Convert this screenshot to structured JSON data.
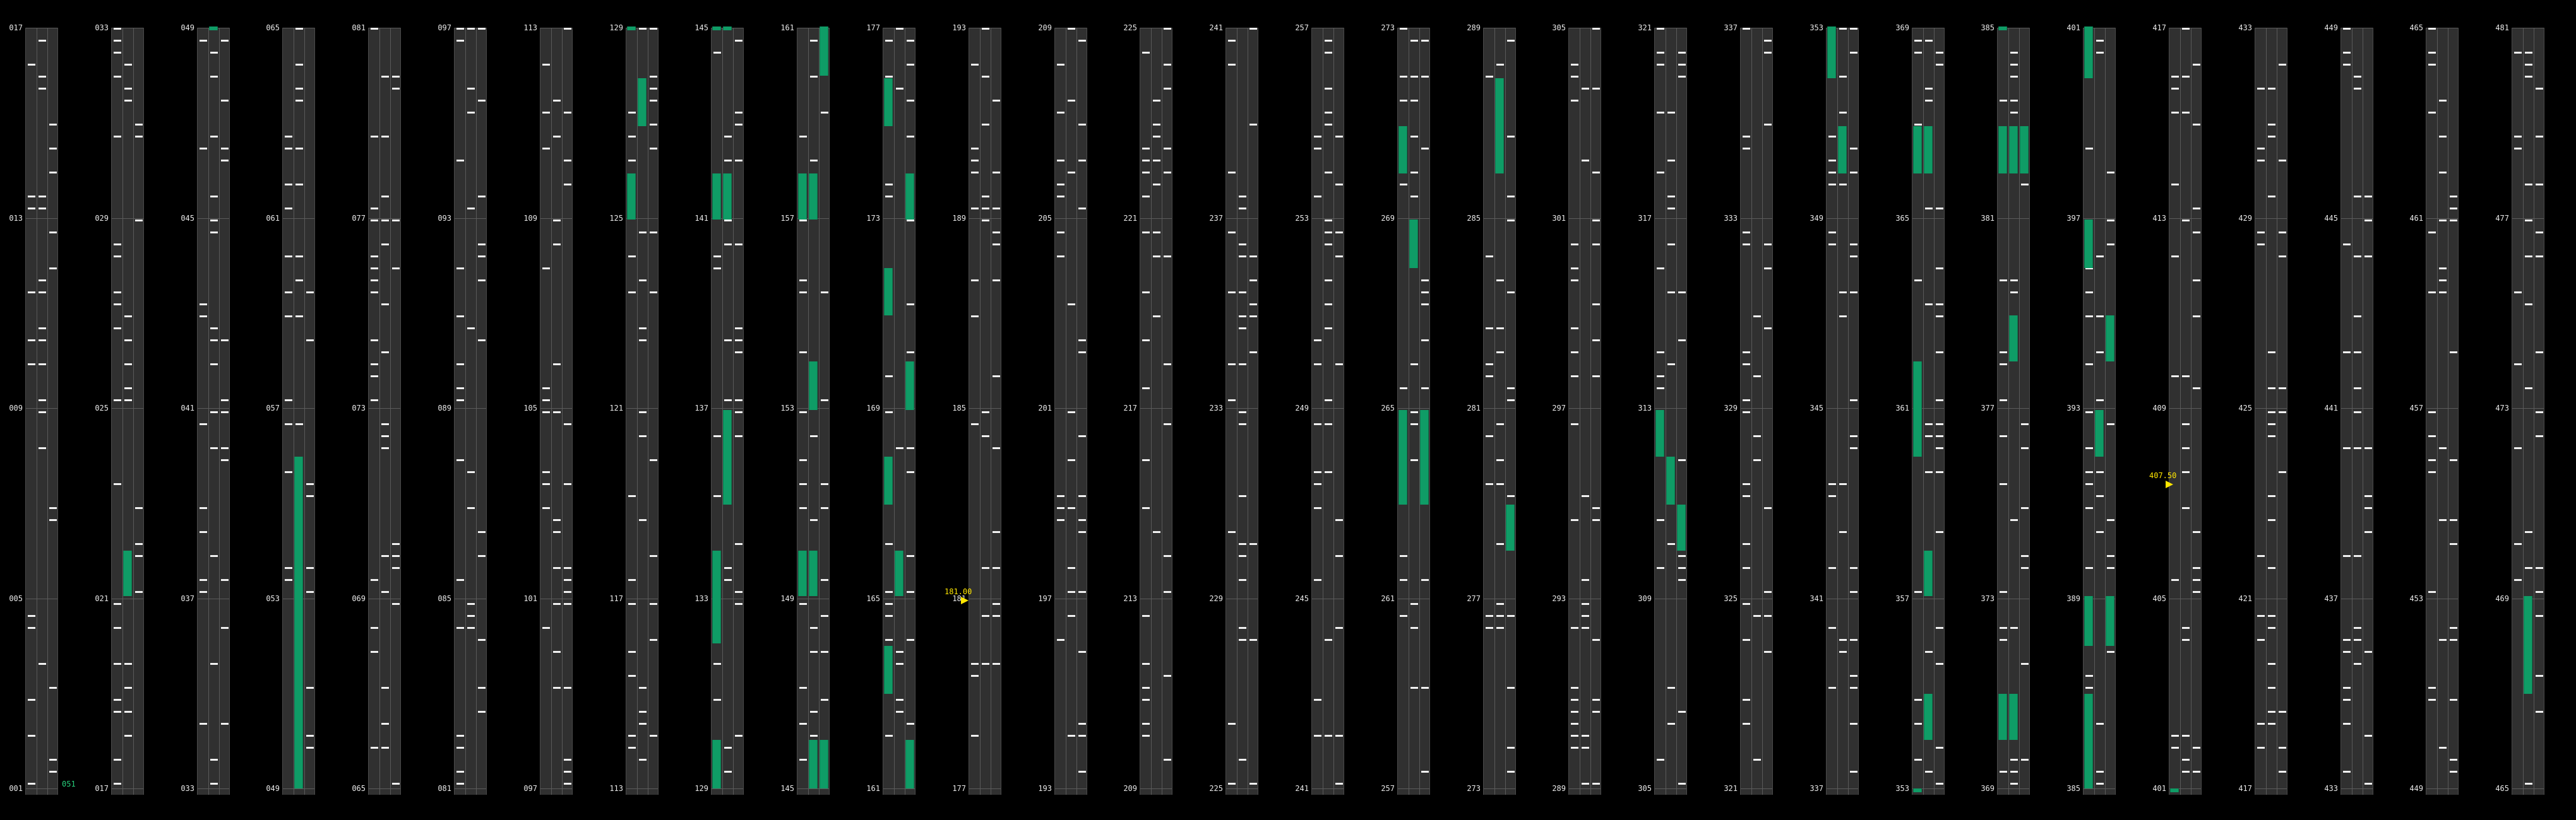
{
  "columns": [
    {
      "labels": [
        "017",
        "013",
        "009",
        "005",
        "001"
      ]
    },
    {
      "labels": [
        "033",
        "029",
        "025",
        "021",
        "017"
      ]
    },
    {
      "labels": [
        "049",
        "045",
        "041",
        "037",
        "033"
      ]
    },
    {
      "labels": [
        "065",
        "061",
        "057",
        "053",
        "049"
      ]
    },
    {
      "labels": [
        "081",
        "077",
        "073",
        "069",
        "065"
      ]
    },
    {
      "labels": [
        "097",
        "093",
        "089",
        "085",
        "081"
      ]
    },
    {
      "labels": [
        "113",
        "109",
        "105",
        "101",
        "097"
      ]
    },
    {
      "labels": [
        "129",
        "125",
        "121",
        "117",
        "113"
      ]
    },
    {
      "labels": [
        "145",
        "141",
        "137",
        "133",
        "129"
      ]
    },
    {
      "labels": [
        "161",
        "157",
        "153",
        "149",
        "145"
      ]
    },
    {
      "labels": [
        "177",
        "173",
        "169",
        "165",
        "161"
      ]
    },
    {
      "labels": [
        "193",
        "189",
        "185",
        "181",
        "177"
      ]
    },
    {
      "labels": [
        "209",
        "205",
        "201",
        "197",
        "193"
      ]
    },
    {
      "labels": [
        "225",
        "221",
        "217",
        "213",
        "209"
      ]
    },
    {
      "labels": [
        "241",
        "237",
        "233",
        "229",
        "225"
      ]
    },
    {
      "labels": [
        "257",
        "253",
        "249",
        "245",
        "241"
      ]
    },
    {
      "labels": [
        "273",
        "269",
        "265",
        "261",
        "257"
      ]
    },
    {
      "labels": [
        "289",
        "285",
        "281",
        "277",
        "273"
      ]
    },
    {
      "labels": [
        "305",
        "301",
        "297",
        "293",
        "289"
      ]
    },
    {
      "labels": [
        "321",
        "317",
        "313",
        "309",
        "305"
      ]
    },
    {
      "labels": [
        "337",
        "333",
        "329",
        "325",
        "321"
      ]
    },
    {
      "labels": [
        "353",
        "349",
        "345",
        "341",
        "337"
      ]
    },
    {
      "labels": [
        "369",
        "365",
        "361",
        "357",
        "353"
      ]
    },
    {
      "labels": [
        "385",
        "381",
        "377",
        "373",
        "369"
      ]
    },
    {
      "labels": [
        "401",
        "397",
        "393",
        "389",
        "385"
      ]
    },
    {
      "labels": [
        "417",
        "413",
        "409",
        "405",
        "401"
      ]
    },
    {
      "labels": [
        "433",
        "429",
        "425",
        "421",
        "417"
      ]
    },
    {
      "labels": [
        "449",
        "445",
        "441",
        "437",
        "433"
      ]
    },
    {
      "labels": [
        "465",
        "461",
        "457",
        "453",
        "449"
      ]
    },
    {
      "labels": [
        "481",
        "477",
        "473",
        "469",
        "465"
      ]
    }
  ],
  "markers": [
    {
      "text": "181.00"
    },
    {
      "text": "407.50"
    }
  ],
  "end_label": "051",
  "colors": {
    "background": "#000000",
    "column": "#303030",
    "note": "#f2f2f2",
    "long_note": "#0f9c66",
    "marker": "#ffe600"
  }
}
